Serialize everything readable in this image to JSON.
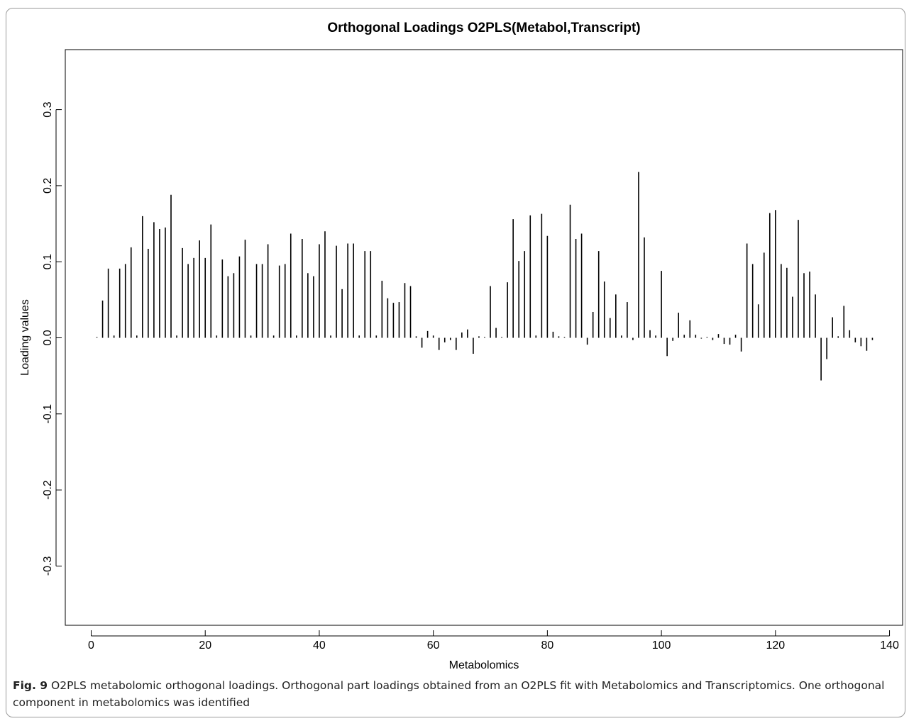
{
  "chart_data": {
    "type": "bar",
    "title": "Orthogonal Loadings O2PLS(Metabol,Transcript)",
    "xlabel": "Metabolomics",
    "ylabel": "Loading values",
    "xlim": [
      -5,
      142
    ],
    "ylim": [
      -0.375,
      0.375
    ],
    "xticks": [
      0,
      20,
      40,
      60,
      80,
      100,
      120,
      140
    ],
    "yticks": [
      -0.3,
      -0.2,
      -0.1,
      0.0,
      0.1,
      0.2,
      0.3
    ],
    "ytick_labels": [
      "-0.3",
      "-0.2",
      "-0.1",
      "0.0",
      "0.1",
      "0.2",
      "0.3"
    ],
    "x": [
      1,
      2,
      3,
      4,
      5,
      6,
      7,
      8,
      9,
      10,
      11,
      12,
      13,
      14,
      15,
      16,
      17,
      18,
      19,
      20,
      21,
      22,
      23,
      24,
      25,
      26,
      27,
      28,
      29,
      30,
      31,
      32,
      33,
      34,
      35,
      36,
      37,
      38,
      39,
      40,
      41,
      42,
      43,
      44,
      45,
      46,
      47,
      48,
      49,
      50,
      51,
      52,
      53,
      54,
      55,
      56,
      57,
      58,
      59,
      60,
      61,
      62,
      63,
      64,
      65,
      66,
      67,
      68,
      69,
      70,
      71,
      72,
      73,
      74,
      75,
      76,
      77,
      78,
      79,
      80,
      81,
      82,
      83,
      84,
      85,
      86,
      87,
      88,
      89,
      90,
      91,
      92,
      93,
      94,
      95,
      96,
      97,
      98,
      99,
      100,
      101,
      102,
      103,
      104,
      105,
      106,
      107,
      108,
      109,
      110,
      111,
      112,
      113,
      114,
      115,
      116,
      117,
      118,
      119,
      120,
      121,
      122,
      123,
      124,
      125,
      126,
      127,
      128,
      129,
      130,
      131,
      132,
      133,
      134,
      135,
      136,
      137
    ],
    "values": [
      0.001,
      0.049,
      0.091,
      0.003,
      0.091,
      0.097,
      0.119,
      0.003,
      0.16,
      0.117,
      0.152,
      0.143,
      0.145,
      0.188,
      0.003,
      0.118,
      0.097,
      0.105,
      0.128,
      0.105,
      0.149,
      0.003,
      0.103,
      0.081,
      0.085,
      0.107,
      0.129,
      0.003,
      0.097,
      0.097,
      0.123,
      0.003,
      0.095,
      0.097,
      0.137,
      0.003,
      0.13,
      0.085,
      0.081,
      0.123,
      0.14,
      0.003,
      0.121,
      0.064,
      0.124,
      0.124,
      0.003,
      0.114,
      0.114,
      0.003,
      0.075,
      0.052,
      0.046,
      0.047,
      0.072,
      0.068,
      0.002,
      -0.013,
      0.009,
      0.003,
      -0.016,
      -0.006,
      -0.003,
      -0.016,
      0.007,
      0.011,
      -0.021,
      0.002,
      0.001,
      0.068,
      0.013,
      0.001,
      0.073,
      0.156,
      0.101,
      0.114,
      0.161,
      0.003,
      0.163,
      0.134,
      0.008,
      0.002,
      0.001,
      0.175,
      0.13,
      0.137,
      -0.009,
      0.034,
      0.114,
      0.074,
      0.026,
      0.057,
      0.003,
      0.047,
      -0.003,
      0.218,
      0.132,
      0.01,
      0.003,
      0.088,
      -0.024,
      -0.004,
      0.033,
      0.004,
      0.023,
      0.004,
      -0.001,
      0.001,
      -0.003,
      0.005,
      -0.008,
      -0.009,
      0.004,
      -0.018,
      0.124,
      0.097,
      0.044,
      0.112,
      0.164,
      0.168,
      0.097,
      0.092,
      0.054,
      0.155,
      0.085,
      0.087,
      0.057,
      -0.056,
      -0.028,
      0.027,
      0.002,
      0.042,
      0.01,
      -0.006,
      -0.011,
      -0.017,
      -0.003
    ]
  },
  "caption": {
    "label": "Fig. 9",
    "text": " O2PLS metabolomic orthogonal loadings. Orthogonal part loadings obtained from an O2PLS fit with Metabolomics and Transcriptomics. One orthogonal component in metabolomics was identified"
  }
}
